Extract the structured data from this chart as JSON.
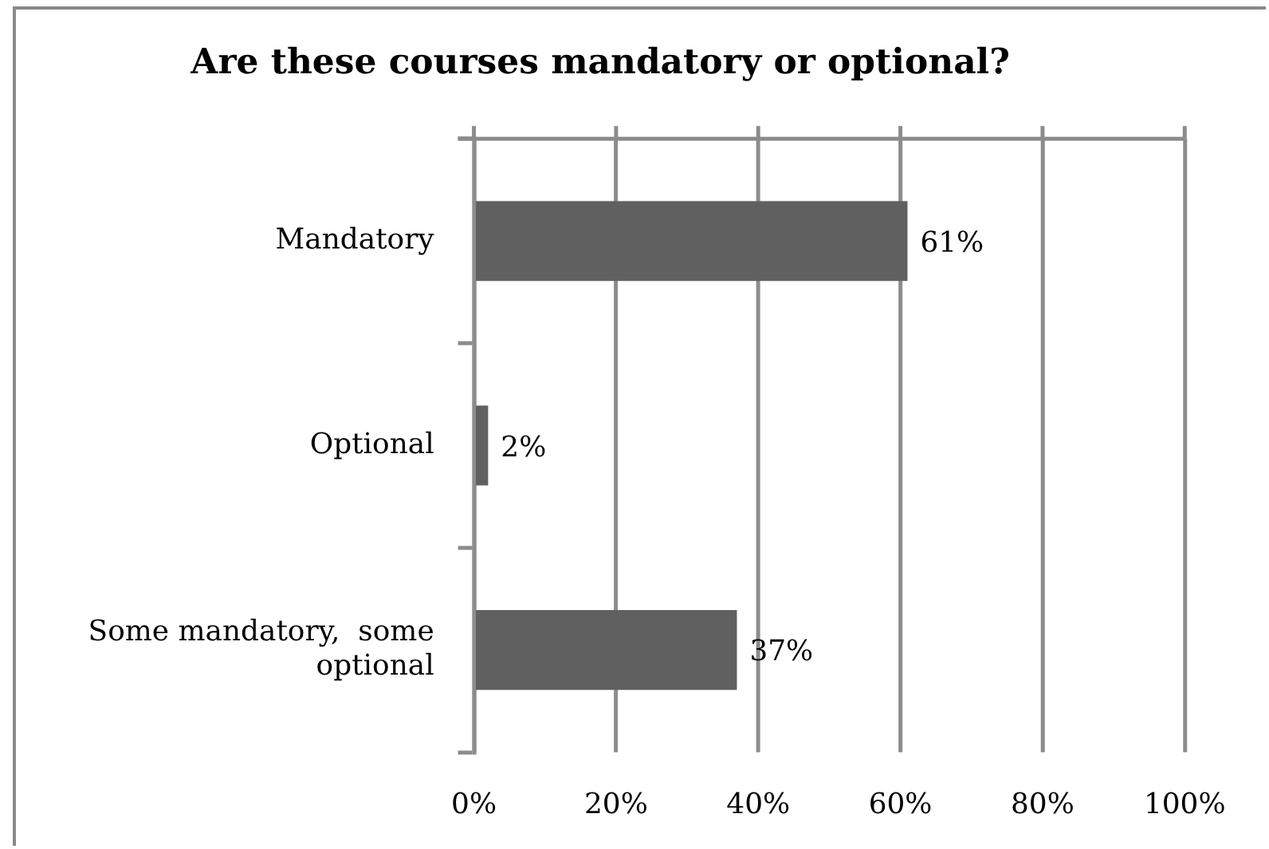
{
  "chart_data": {
    "type": "bar",
    "orientation": "horizontal",
    "title": "Are these courses mandatory or optional?",
    "categories": [
      "Mandatory",
      "Optional",
      "Some mandatory,  some optional"
    ],
    "values": [
      61,
      2,
      37
    ],
    "color": "#606060",
    "value_labels": [
      "61%",
      "2%",
      "37%"
    ],
    "xlim": [
      0,
      100
    ],
    "xticks": [
      {
        "value": 0,
        "label": "0%"
      },
      {
        "value": 20,
        "label": "20%"
      },
      {
        "value": 40,
        "label": "40%"
      },
      {
        "value": 60,
        "label": "60%"
      },
      {
        "value": 80,
        "label": "80%"
      },
      {
        "value": 100,
        "label": "100%"
      }
    ],
    "grid": "x"
  }
}
